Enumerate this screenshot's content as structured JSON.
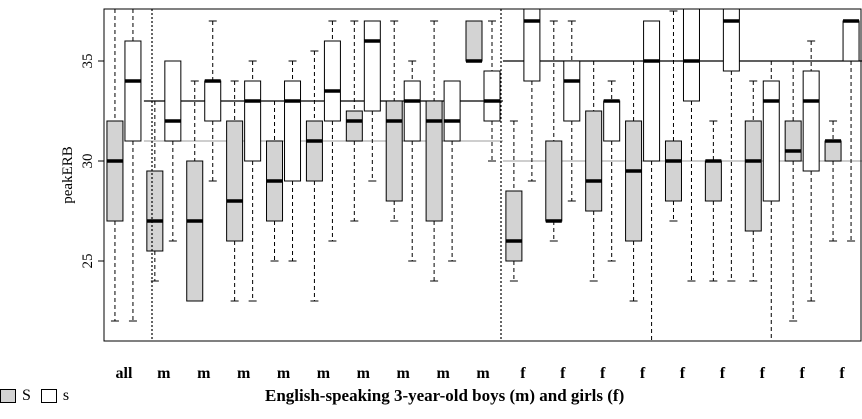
{
  "chart_data": {
    "type": "box",
    "ylabel": "peakERB",
    "xlabel": "English-speaking 3-year-old boys (m) and girls (f)",
    "ylim": [
      21,
      37.6
    ],
    "yticks": [
      25,
      30,
      35
    ],
    "categories": [
      "all",
      "m",
      "m",
      "m",
      "m",
      "m",
      "m",
      "m",
      "m",
      "m",
      "f",
      "f",
      "f",
      "f",
      "f",
      "f",
      "f",
      "f",
      "f"
    ],
    "separators_after_index": [
      0,
      9
    ],
    "group_reference_lines": [
      {
        "range": [
          1,
          9
        ],
        "S_median": 31,
        "s_median": 33
      },
      {
        "range": [
          10,
          18
        ],
        "S_median": 30,
        "s_median": 35
      }
    ],
    "series": [
      {
        "name": "S",
        "fill": "#d3d3d3",
        "boxes": [
          {
            "low": 22.0,
            "q1": 27.0,
            "median": 30.0,
            "q3": 32.0,
            "high": 37.6
          },
          {
            "low": 24.0,
            "q1": 25.5,
            "median": 27.0,
            "q3": 29.5,
            "high": 33.0
          },
          {
            "low": 23.0,
            "q1": 23.0,
            "median": 27.0,
            "q3": 30.0,
            "high": 34.0
          },
          {
            "low": 23.0,
            "q1": 26.0,
            "median": 28.0,
            "q3": 32.0,
            "high": 34.0
          },
          {
            "low": 25.0,
            "q1": 27.0,
            "median": 29.0,
            "q3": 31.0,
            "high": 33.0
          },
          {
            "low": 23.0,
            "q1": 29.0,
            "median": 31.0,
            "q3": 32.0,
            "high": 35.5
          },
          {
            "low": 27.0,
            "q1": 31.0,
            "median": 32.0,
            "q3": 32.5,
            "high": 37.0
          },
          {
            "low": 27.0,
            "q1": 28.0,
            "median": 32.0,
            "q3": 33.0,
            "high": 37.0
          },
          {
            "low": 24.0,
            "q1": 27.0,
            "median": 32.0,
            "q3": 33.0,
            "high": 37.0
          },
          {
            "low": 35.0,
            "q1": 35.0,
            "median": 35.0,
            "q3": 37.0,
            "high": 37.0
          },
          {
            "low": 24.0,
            "q1": 25.0,
            "median": 26.0,
            "q3": 28.5,
            "high": 32.0
          },
          {
            "low": 26.0,
            "q1": 27.0,
            "median": 27.0,
            "q3": 31.0,
            "high": 37.0
          },
          {
            "low": 24.0,
            "q1": 27.5,
            "median": 29.0,
            "q3": 32.5,
            "high": 35.0
          },
          {
            "low": 23.0,
            "q1": 26.0,
            "median": 29.5,
            "q3": 32.0,
            "high": 35.0
          },
          {
            "low": 27.0,
            "q1": 28.0,
            "median": 30.0,
            "q3": 31.0,
            "high": 37.5
          },
          {
            "low": 24.0,
            "q1": 28.0,
            "median": 30.0,
            "q3": 30.0,
            "high": 32.0
          },
          {
            "low": 24.0,
            "q1": 26.5,
            "median": 30.0,
            "q3": 32.0,
            "high": 34.0
          },
          {
            "low": 22.0,
            "q1": 30.0,
            "median": 30.5,
            "q3": 32.0,
            "high": 35.0
          },
          {
            "low": 26.0,
            "q1": 30.0,
            "median": 31.0,
            "q3": 31.0,
            "high": 32.0
          }
        ]
      },
      {
        "name": "s",
        "fill": "#ffffff",
        "boxes": [
          {
            "low": 22.0,
            "q1": 31.0,
            "median": 34.0,
            "q3": 36.0,
            "high": 37.6
          },
          {
            "low": 26.0,
            "q1": 31.0,
            "median": 32.0,
            "q3": 35.0,
            "high": 35.0
          },
          {
            "low": 29.0,
            "q1": 32.0,
            "median": 34.0,
            "q3": 34.0,
            "high": 37.0
          },
          {
            "low": 23.0,
            "q1": 30.0,
            "median": 33.0,
            "q3": 34.0,
            "high": 35.0
          },
          {
            "low": 25.0,
            "q1": 29.0,
            "median": 33.0,
            "q3": 34.0,
            "high": 35.0
          },
          {
            "low": 26.0,
            "q1": 32.0,
            "median": 33.5,
            "q3": 36.0,
            "high": 37.0
          },
          {
            "low": 29.0,
            "q1": 32.5,
            "median": 36.0,
            "q3": 37.0,
            "high": 37.0
          },
          {
            "low": 25.0,
            "q1": 31.0,
            "median": 33.0,
            "q3": 34.0,
            "high": 35.0
          },
          {
            "low": 25.0,
            "q1": 31.0,
            "median": 32.0,
            "q3": 34.0,
            "high": 34.0
          },
          {
            "low": 30.0,
            "q1": 32.0,
            "median": 33.0,
            "q3": 34.5,
            "high": 37.0
          },
          {
            "low": 29.0,
            "q1": 34.0,
            "median": 37.0,
            "q3": 37.6,
            "high": 37.6
          },
          {
            "low": 28.0,
            "q1": 32.0,
            "median": 34.0,
            "q3": 35.0,
            "high": 37.0
          },
          {
            "low": 25.0,
            "q1": 31.0,
            "median": 33.0,
            "q3": 33.0,
            "high": 34.0
          },
          {
            "low": 21.0,
            "q1": 30.0,
            "median": 35.0,
            "q3": 37.0,
            "high": 37.0
          },
          {
            "low": 24.0,
            "q1": 33.0,
            "median": 35.0,
            "q3": 37.6,
            "high": 37.6
          },
          {
            "low": 24.0,
            "q1": 34.5,
            "median": 37.0,
            "q3": 37.6,
            "high": 37.6
          },
          {
            "low": 21.0,
            "q1": 28.0,
            "median": 33.0,
            "q3": 34.0,
            "high": 35.0
          },
          {
            "low": 23.0,
            "q1": 29.5,
            "median": 33.0,
            "q3": 34.5,
            "high": 36.0
          },
          {
            "low": 26.0,
            "q1": 35.0,
            "median": 37.0,
            "q3": 37.0,
            "high": 37.0
          }
        ]
      }
    ]
  },
  "legend": {
    "items": [
      {
        "label": "S",
        "color": "#d3d3d3"
      },
      {
        "label": "s",
        "color": "#ffffff"
      }
    ]
  }
}
